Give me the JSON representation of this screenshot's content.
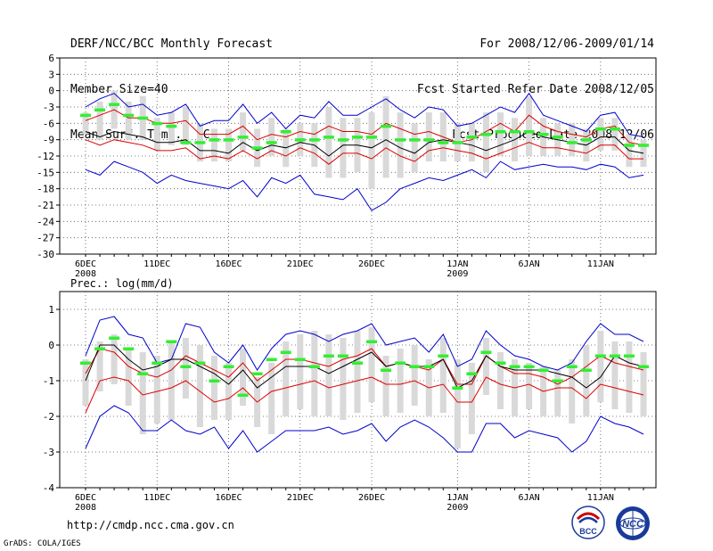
{
  "header": {
    "left": [
      "DERF/NCC/BCC Monthly Forecast",
      "Member Size=40",
      "Mean Surf. Temp.: °C"
    ],
    "right": [
      "For 2008/12/06-2009/01/14",
      "Fcst Started Refer Date 2008/12/05",
      "Fcst Produced Date 2008/12/06"
    ]
  },
  "footer": {
    "url": "http://cmdp.ncc.cma.gov.cn",
    "grads": "GrADS: COLA/IGES"
  },
  "logos": [
    {
      "name": "bcc-logo",
      "text": "BCC"
    },
    {
      "name": "ncc-logo",
      "text": "NCC"
    }
  ],
  "colors": {
    "median": "#000000",
    "band": "#dd0000",
    "envelope": "#0000cc",
    "box": "#d9d9d9",
    "mark": "#33ee33"
  },
  "chart_data": [
    {
      "type": "box-ensemble",
      "title": "Mean Surf. Temp.: °C",
      "xlabel": "",
      "ylabel": "",
      "xlim": [
        0,
        39
      ],
      "ylim": [
        -30,
        6
      ],
      "yticks": [
        6,
        3,
        0,
        -3,
        -6,
        -9,
        -12,
        -15,
        -18,
        -21,
        -24,
        -27,
        -30
      ],
      "xticks": [
        {
          "x": 0,
          "label": "6DEC",
          "sub": "2008"
        },
        {
          "x": 5,
          "label": "11DEC",
          "sub": ""
        },
        {
          "x": 10,
          "label": "16DEC",
          "sub": ""
        },
        {
          "x": 15,
          "label": "21DEC",
          "sub": ""
        },
        {
          "x": 20,
          "label": "26DEC",
          "sub": ""
        },
        {
          "x": 26,
          "label": "1JAN",
          "sub": "2009"
        },
        {
          "x": 31,
          "label": "6JAN",
          "sub": ""
        },
        {
          "x": 36,
          "label": "11JAN",
          "sub": ""
        }
      ],
      "series": [
        {
          "name": "upper-envelope",
          "color": "#0000cc",
          "values": [
            -3.0,
            -1.5,
            -0.5,
            -3.0,
            -2.5,
            -4.5,
            -4.0,
            -2.5,
            -6.5,
            -5.5,
            -5.5,
            -2.5,
            -6.0,
            -4.0,
            -7.0,
            -4.5,
            -5.0,
            -2.0,
            -4.5,
            -4.5,
            -3.0,
            -1.5,
            -3.5,
            -5.0,
            -3.0,
            -3.5,
            -6.5,
            -6.0,
            -4.5,
            -3.0,
            -4.0,
            -0.5,
            -4.5,
            -5.5,
            -6.5,
            -7.5,
            -4.5,
            -4.0,
            -8.0,
            -8.5
          ]
        },
        {
          "name": "upper-band",
          "color": "#dd0000",
          "values": [
            -5.5,
            -4.5,
            -3.5,
            -5.0,
            -5.0,
            -6.0,
            -6.0,
            -5.5,
            -8.0,
            -8.0,
            -8.0,
            -6.5,
            -9.0,
            -8.0,
            -8.5,
            -7.5,
            -8.0,
            -6.5,
            -7.5,
            -7.5,
            -8.0,
            -6.0,
            -7.0,
            -8.0,
            -7.5,
            -8.5,
            -9.5,
            -9.0,
            -7.5,
            -6.0,
            -7.5,
            -4.5,
            -6.5,
            -7.5,
            -8.0,
            -8.5,
            -7.0,
            -6.5,
            -9.5,
            -10.0
          ]
        },
        {
          "name": "median",
          "color": "#000000",
          "values": [
            -7.5,
            -8.5,
            -7.5,
            -8.0,
            -8.5,
            -9.5,
            -9.5,
            -9.0,
            -11.0,
            -11.0,
            -11.5,
            -9.5,
            -11.0,
            -10.0,
            -10.5,
            -9.5,
            -10.0,
            -12.0,
            -10.0,
            -10.0,
            -10.5,
            -9.0,
            -10.5,
            -11.5,
            -9.5,
            -9.0,
            -9.5,
            -10.0,
            -11.0,
            -10.0,
            -9.0,
            -7.5,
            -8.5,
            -9.0,
            -9.5,
            -10.0,
            -8.5,
            -8.5,
            -11.0,
            -11.5
          ]
        },
        {
          "name": "lower-band",
          "color": "#dd0000",
          "values": [
            -9.0,
            -10.0,
            -9.0,
            -9.5,
            -10.0,
            -11.0,
            -11.0,
            -10.5,
            -12.5,
            -12.0,
            -12.5,
            -11.0,
            -12.5,
            -11.0,
            -12.0,
            -10.5,
            -11.5,
            -13.5,
            -11.5,
            -11.5,
            -12.5,
            -10.5,
            -12.0,
            -13.0,
            -11.0,
            -10.5,
            -11.0,
            -11.5,
            -12.5,
            -11.5,
            -10.5,
            -9.5,
            -10.5,
            -10.5,
            -11.0,
            -11.5,
            -10.0,
            -10.0,
            -12.5,
            -12.5
          ]
        },
        {
          "name": "lower-envelope",
          "color": "#0000cc",
          "values": [
            -14.5,
            -15.5,
            -13.0,
            -14.0,
            -15.0,
            -17.0,
            -15.5,
            -16.5,
            -17.0,
            -17.5,
            -18.0,
            -16.5,
            -19.5,
            -16.0,
            -17.0,
            -15.5,
            -19.0,
            -19.5,
            -20.0,
            -18.0,
            -22.0,
            -20.5,
            -18.0,
            -17.0,
            -16.0,
            -16.5,
            -15.5,
            -14.5,
            -16.0,
            -13.0,
            -14.5,
            -14.0,
            -13.5,
            -14.0,
            -14.0,
            -14.5,
            -13.5,
            -14.0,
            -16.0,
            -15.5
          ]
        }
      ],
      "boxes": {
        "low": [
          -8,
          -9,
          -7,
          -9,
          -9,
          -11,
          -10,
          -10,
          -13,
          -13,
          -13,
          -11,
          -14,
          -12,
          -14,
          -12,
          -14,
          -16,
          -16,
          -15,
          -18,
          -16,
          -16,
          -15,
          -13,
          -13,
          -13,
          -13,
          -15,
          -12,
          -13,
          -12,
          -12,
          -12,
          -12,
          -13,
          -11,
          -11,
          -14,
          -14
        ],
        "high": [
          -4,
          -2,
          0,
          -2,
          -1,
          -5,
          -4,
          -3,
          -6,
          -7,
          -7,
          -4,
          -7,
          -5,
          -7,
          -6,
          -6,
          -3,
          -5,
          -5,
          -4,
          -1,
          -4,
          -6,
          -4,
          -4,
          -6,
          -6,
          -4,
          -4,
          -5,
          -1,
          -5,
          -6,
          -6,
          -7,
          -5,
          -5,
          -8,
          -9
        ],
        "marks": [
          -4.5,
          -3.5,
          -2.5,
          -4.5,
          -5.0,
          -6.0,
          -6.5,
          -9.5,
          -9.5,
          -9.0,
          -9.0,
          -8.5,
          -10.5,
          -9.5,
          -7.5,
          -9.0,
          -9.0,
          -8.5,
          -9.0,
          -8.5,
          -8.5,
          -6.5,
          -9.0,
          -9.0,
          -9.0,
          -9.5,
          -9.5,
          -8.5,
          -8.0,
          -7.5,
          -7.5,
          -7.5,
          -8.0,
          -8.5,
          -9.5,
          -9.0,
          -7.0,
          -7.0,
          -10.0,
          -10.0
        ]
      }
    },
    {
      "type": "box-ensemble",
      "title": "Prec.: log(mm/d)",
      "xlabel": "",
      "ylabel": "",
      "xlim": [
        0,
        39
      ],
      "ylim": [
        -4,
        1.5
      ],
      "yticks": [
        1,
        0,
        -1,
        -2,
        -3,
        -4
      ],
      "xticks": [
        {
          "x": 0,
          "label": "6DEC",
          "sub": "2008"
        },
        {
          "x": 5,
          "label": "11DEC",
          "sub": ""
        },
        {
          "x": 10,
          "label": "16DEC",
          "sub": ""
        },
        {
          "x": 15,
          "label": "21DEC",
          "sub": ""
        },
        {
          "x": 20,
          "label": "26DEC",
          "sub": ""
        },
        {
          "x": 26,
          "label": "1JAN",
          "sub": "2009"
        },
        {
          "x": 31,
          "label": "6JAN",
          "sub": ""
        },
        {
          "x": 36,
          "label": "11JAN",
          "sub": ""
        }
      ],
      "series": [
        {
          "name": "upper-envelope",
          "color": "#0000cc",
          "values": [
            -0.3,
            0.7,
            0.8,
            0.3,
            0.2,
            -0.5,
            -0.4,
            0.6,
            0.5,
            -0.2,
            -0.5,
            0.0,
            -0.7,
            -0.1,
            0.3,
            0.4,
            0.3,
            0.1,
            0.3,
            0.4,
            0.6,
            0.0,
            0.1,
            0.2,
            -0.2,
            0.3,
            -0.6,
            -0.4,
            0.4,
            0.0,
            -0.3,
            -0.4,
            -0.6,
            -0.7,
            -0.5,
            0.1,
            0.6,
            0.3,
            0.3,
            0.1
          ]
        },
        {
          "name": "upper-band",
          "color": "#dd0000",
          "values": [
            -0.8,
            -0.1,
            -0.2,
            -0.6,
            -0.8,
            -0.9,
            -0.7,
            -0.3,
            -0.5,
            -0.7,
            -0.9,
            -0.5,
            -1.0,
            -0.7,
            -0.4,
            -0.4,
            -0.5,
            -0.6,
            -0.4,
            -0.3,
            -0.1,
            -0.6,
            -0.5,
            -0.6,
            -0.7,
            -0.4,
            -1.1,
            -1.1,
            -0.3,
            -0.6,
            -0.8,
            -0.8,
            -0.9,
            -1.1,
            -0.9,
            -0.6,
            -0.3,
            -0.5,
            -0.6,
            -0.7
          ]
        },
        {
          "name": "median",
          "color": "#000000",
          "values": [
            -1.0,
            0.0,
            0.0,
            -0.4,
            -0.7,
            -0.6,
            -0.4,
            -0.4,
            -0.6,
            -0.8,
            -1.1,
            -0.7,
            -1.2,
            -0.9,
            -0.6,
            -0.6,
            -0.6,
            -0.8,
            -0.6,
            -0.4,
            -0.2,
            -0.6,
            -0.5,
            -0.6,
            -0.6,
            -0.4,
            -1.2,
            -1.0,
            -0.3,
            -0.6,
            -0.7,
            -0.7,
            -0.7,
            -0.8,
            -0.9,
            -1.2,
            -0.9,
            -0.3,
            -0.5,
            -0.6
          ]
        },
        {
          "name": "lower-band",
          "color": "#dd0000",
          "values": [
            -1.9,
            -1.0,
            -0.9,
            -1.0,
            -1.4,
            -1.3,
            -1.2,
            -1.0,
            -1.3,
            -1.6,
            -1.5,
            -1.2,
            -1.6,
            -1.3,
            -1.2,
            -1.1,
            -1.0,
            -1.2,
            -1.1,
            -1.0,
            -0.9,
            -1.1,
            -1.1,
            -1.0,
            -1.2,
            -1.1,
            -1.6,
            -1.6,
            -0.9,
            -1.1,
            -1.2,
            -1.1,
            -1.3,
            -1.2,
            -1.2,
            -1.5,
            -1.1,
            -1.2,
            -1.3,
            -1.4
          ]
        },
        {
          "name": "lower-envelope",
          "color": "#0000cc",
          "values": [
            -2.9,
            -2.0,
            -1.7,
            -1.9,
            -2.4,
            -2.4,
            -2.1,
            -2.4,
            -2.5,
            -2.3,
            -2.9,
            -2.4,
            -3.0,
            -2.7,
            -2.4,
            -2.4,
            -2.4,
            -2.3,
            -2.5,
            -2.4,
            -2.2,
            -2.7,
            -2.3,
            -2.1,
            -2.3,
            -2.6,
            -3.0,
            -3.0,
            -2.2,
            -2.2,
            -2.6,
            -2.4,
            -2.5,
            -2.6,
            -3.0,
            -2.7,
            -2.0,
            -2.2,
            -2.3,
            -2.5
          ]
        },
        {
          "name": "lower-envelope-extra",
          "color": "#0000cc",
          "values": []
        }
      ],
      "boxes": {
        "low": [
          -1.7,
          -1.3,
          -1.1,
          -1.7,
          -2.5,
          -2.2,
          -2.1,
          -1.5,
          -2.3,
          -2.1,
          -2.1,
          -1.7,
          -2.3,
          -2.5,
          -2.0,
          -1.8,
          -2.0,
          -2.0,
          -2.1,
          -1.9,
          -1.6,
          -2.0,
          -1.9,
          -1.7,
          -2.0,
          -1.9,
          -2.9,
          -2.5,
          -1.4,
          -1.8,
          -2.0,
          -1.8,
          -2.0,
          -2.0,
          -2.2,
          -2.0,
          -1.6,
          -1.8,
          -1.9,
          -2.0
        ],
        "high": [
          -0.4,
          0.1,
          0.3,
          -0.1,
          -0.2,
          -0.3,
          0.1,
          0.2,
          0.0,
          -0.3,
          -0.5,
          -0.1,
          -0.9,
          -0.5,
          0.1,
          0.3,
          0.4,
          0.3,
          0.2,
          0.4,
          0.5,
          -0.3,
          -0.1,
          0.0,
          -0.4,
          0.2,
          -0.4,
          -0.5,
          0.2,
          -0.2,
          -0.4,
          -0.5,
          -0.6,
          -0.7,
          -0.4,
          0.0,
          0.4,
          0.1,
          0.1,
          -0.2
        ],
        "marks": [
          -0.5,
          -0.1,
          0.2,
          -0.1,
          -0.8,
          -0.5,
          0.1,
          -0.6,
          -0.5,
          -1.0,
          -0.6,
          -1.4,
          -0.8,
          -0.4,
          -0.2,
          -0.4,
          -0.6,
          -0.3,
          -0.3,
          -0.5,
          0.1,
          -0.7,
          -0.5,
          -0.6,
          -0.6,
          -0.3,
          -1.2,
          -0.8,
          -0.2,
          -0.5,
          -0.6,
          -0.6,
          -0.7,
          -1.0,
          -0.6,
          -0.7,
          -0.3,
          -0.3,
          -0.3,
          -0.6
        ]
      }
    }
  ]
}
